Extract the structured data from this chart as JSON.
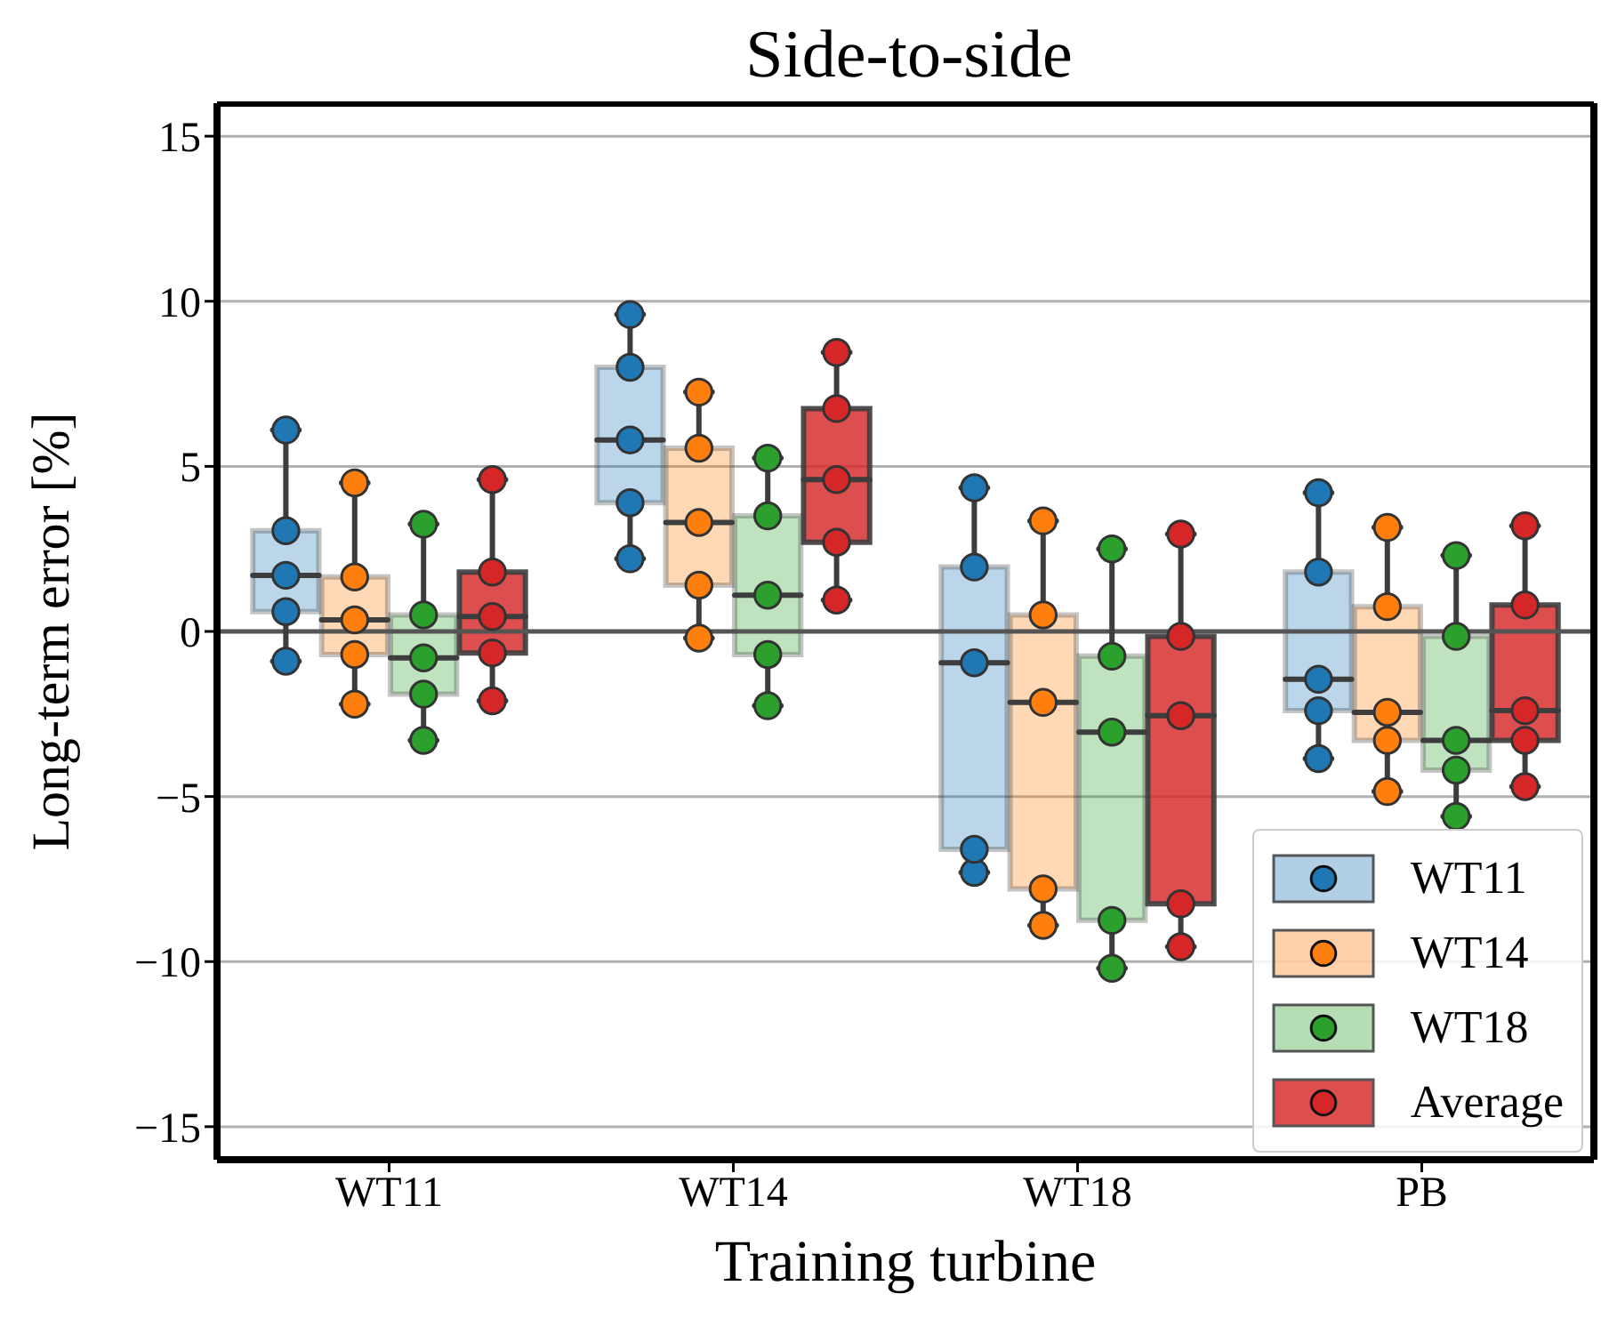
{
  "chart_data": {
    "type": "box",
    "title": "Side-to-side",
    "xlabel": "Training turbine",
    "ylabel": "Long-term error [%]",
    "categories": [
      "WT11",
      "WT14",
      "WT18",
      "PB"
    ],
    "ylim": [
      -16,
      16
    ],
    "yticks": [
      {
        "value": -15,
        "label": "−15"
      },
      {
        "value": -10,
        "label": "−10"
      },
      {
        "value": -5,
        "label": "−5"
      },
      0,
      5,
      10,
      15
    ],
    "grid": "y",
    "legend": "bottom right",
    "marker": "circle",
    "ref_lines": [
      {
        "axis": "y",
        "value": 0,
        "color": "#555555"
      }
    ],
    "series": [
      {
        "name": "WT11",
        "color": "#1f77b4",
        "boxes": [
          {
            "low": -0.9,
            "q1": 0.6,
            "median": 1.7,
            "q3": 3.05,
            "high": 6.1
          },
          {
            "low": 2.2,
            "q1": 3.9,
            "median": 5.8,
            "q3": 8.0,
            "high": 9.6
          },
          {
            "low": -7.3,
            "q1": -6.6,
            "median": -0.95,
            "q3": 1.95,
            "high": 4.35
          },
          {
            "low": -3.85,
            "q1": -2.4,
            "median": -1.45,
            "q3": 1.8,
            "high": 4.2
          }
        ]
      },
      {
        "name": "WT14",
        "color": "#ff7f0e",
        "boxes": [
          {
            "low": -2.2,
            "q1": -0.7,
            "median": 0.35,
            "q3": 1.65,
            "high": 4.5
          },
          {
            "low": -0.2,
            "q1": 1.4,
            "median": 3.3,
            "q3": 5.55,
            "high": 7.25
          },
          {
            "low": -8.9,
            "q1": -7.8,
            "median": -2.15,
            "q3": 0.5,
            "high": 3.35
          },
          {
            "low": -4.85,
            "q1": -3.3,
            "median": -2.45,
            "q3": 0.75,
            "high": 3.15
          }
        ]
      },
      {
        "name": "WT18",
        "color": "#2ca02c",
        "boxes": [
          {
            "low": -3.3,
            "q1": -1.9,
            "median": -0.8,
            "q3": 0.5,
            "high": 3.25
          },
          {
            "low": -2.25,
            "q1": -0.7,
            "median": 1.1,
            "q3": 3.5,
            "high": 5.25
          },
          {
            "low": -10.2,
            "q1": -8.75,
            "median": -3.05,
            "q3": -0.75,
            "high": 2.5
          },
          {
            "low": -5.6,
            "q1": -4.2,
            "median": -3.3,
            "q3": -0.15,
            "high": 2.3
          }
        ]
      },
      {
        "name": "Average",
        "color": "#d62728",
        "boxes": [
          {
            "low": -2.1,
            "q1": -0.65,
            "median": 0.45,
            "q3": 1.8,
            "high": 4.6
          },
          {
            "low": 0.95,
            "q1": 2.7,
            "median": 4.6,
            "q3": 6.75,
            "high": 8.45
          },
          {
            "low": -9.55,
            "q1": -8.25,
            "median": -2.55,
            "q3": -0.15,
            "high": 2.95
          },
          {
            "low": -4.7,
            "q1": -3.3,
            "median": -2.4,
            "q3": 0.8,
            "high": 3.2
          }
        ]
      },
      {
        "type": "scatter",
        "color": "#1f77b4",
        "x": [
          "WT11",
          "WT11",
          "WT11",
          "WT11",
          "WT11",
          "WT14",
          "WT14",
          "WT14",
          "WT14",
          "WT14",
          "WT18",
          "WT18",
          "WT18",
          "WT18",
          "WT18",
          "PB",
          "PB",
          "PB",
          "PB",
          "PB"
        ],
        "values": [
          -0.9,
          0.6,
          1.7,
          3.05,
          6.1,
          2.2,
          3.9,
          5.8,
          8.0,
          9.6,
          -7.3,
          -6.6,
          -0.95,
          1.95,
          4.35,
          -3.85,
          -2.4,
          -1.45,
          1.8,
          4.2
        ]
      },
      {
        "type": "scatter",
        "color": "#ff7f0e",
        "x": [
          "WT11",
          "WT11",
          "WT11",
          "WT11",
          "WT11",
          "WT14",
          "WT14",
          "WT14",
          "WT14",
          "WT14",
          "WT18",
          "WT18",
          "WT18",
          "WT18",
          "WT18",
          "PB",
          "PB",
          "PB",
          "PB",
          "PB"
        ],
        "values": [
          -2.2,
          -0.7,
          0.35,
          1.65,
          4.5,
          -0.2,
          1.4,
          3.3,
          5.55,
          7.25,
          -8.9,
          -7.8,
          -2.15,
          0.5,
          3.35,
          -4.85,
          -3.3,
          -2.45,
          0.75,
          3.15
        ]
      },
      {
        "type": "scatter",
        "color": "#2ca02c",
        "x": [
          "WT11",
          "WT11",
          "WT11",
          "WT11",
          "WT11",
          "WT14",
          "WT14",
          "WT14",
          "WT14",
          "WT14",
          "WT18",
          "WT18",
          "WT18",
          "WT18",
          "WT18",
          "PB",
          "PB",
          "PB",
          "PB",
          "PB"
        ],
        "values": [
          -3.3,
          -1.9,
          -0.8,
          0.5,
          3.25,
          -2.25,
          -0.7,
          1.1,
          3.5,
          5.25,
          -10.2,
          -8.75,
          -3.05,
          -0.75,
          2.5,
          -5.6,
          -4.2,
          -3.3,
          -0.15,
          2.3
        ]
      },
      {
        "type": "scatter",
        "color": "#d62728",
        "x": [
          "WT11",
          "WT11",
          "WT11",
          "WT11",
          "WT11",
          "WT14",
          "WT14",
          "WT14",
          "WT14",
          "WT14",
          "WT18",
          "WT18",
          "WT18",
          "WT18",
          "WT18",
          "PB",
          "PB",
          "PB",
          "PB",
          "PB"
        ],
        "values": [
          -2.1,
          -0.65,
          0.45,
          1.8,
          4.6,
          0.95,
          2.7,
          4.6,
          6.75,
          8.45,
          -9.55,
          -8.25,
          -2.55,
          -0.15,
          2.95,
          -4.7,
          -3.3,
          -2.4,
          0.8,
          3.2
        ]
      }
    ]
  }
}
